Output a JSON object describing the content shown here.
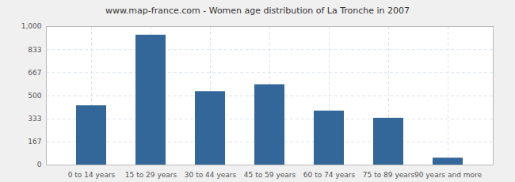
{
  "chart_data": {
    "type": "bar",
    "title": "www.map-france.com - Women age distribution of La Tronche in 2007",
    "categories": [
      "0 to 14 years",
      "15 to 29 years",
      "30 to 44 years",
      "45 to 59 years",
      "60 to 74 years",
      "75 to 89 years",
      "90 years and more"
    ],
    "values": [
      428,
      938,
      530,
      580,
      390,
      338,
      50
    ],
    "color": "#336699",
    "ylim": [
      0,
      1000
    ],
    "yticks": [
      0,
      167,
      333,
      500,
      667,
      833,
      1000
    ],
    "grid": true
  }
}
